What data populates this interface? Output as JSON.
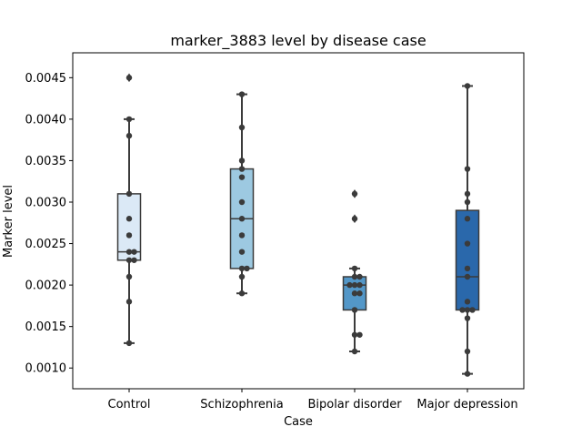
{
  "chart_data": {
    "type": "box",
    "title": "marker_3883 level by disease case",
    "xlabel": "Case",
    "ylabel": "Marker level",
    "categories": [
      "Control",
      "Schizophrenia",
      "Bipolar disorder",
      "Major depression"
    ],
    "ylim": [
      0.00075,
      0.0048
    ],
    "yticks": [
      "0.0010",
      "0.0015",
      "0.0020",
      "0.0025",
      "0.0030",
      "0.0035",
      "0.0040",
      "0.0045"
    ],
    "boxes": [
      {
        "q1": 0.0023,
        "median": 0.0024,
        "q3": 0.0031,
        "whisker_low": 0.0013,
        "whisker_high": 0.004,
        "fliers": [
          0.0045
        ],
        "color": "#dbe9f6"
      },
      {
        "q1": 0.0022,
        "median": 0.0028,
        "q3": 0.0034,
        "whisker_low": 0.0019,
        "whisker_high": 0.0043,
        "fliers": [],
        "color": "#9dc9e1"
      },
      {
        "q1": 0.0017,
        "median": 0.002,
        "q3": 0.0021,
        "whisker_low": 0.0012,
        "whisker_high": 0.0022,
        "fliers": [
          0.0031,
          0.0028
        ],
        "color": "#5397c8"
      },
      {
        "q1": 0.0017,
        "median": 0.0021,
        "q3": 0.0029,
        "whisker_low": 0.00093,
        "whisker_high": 0.0044,
        "fliers": [],
        "color": "#2a68ab"
      }
    ],
    "points": [
      [
        0.0045,
        0.004,
        0.0038,
        0.0031,
        0.0028,
        0.0026,
        0.0024,
        0.0024,
        0.0023,
        0.0023,
        0.0021,
        0.0018,
        0.0013
      ],
      [
        0.0043,
        0.0039,
        0.0035,
        0.0034,
        0.0033,
        0.003,
        0.0028,
        0.0026,
        0.0024,
        0.0022,
        0.0022,
        0.0021,
        0.0019
      ],
      [
        0.0031,
        0.0028,
        0.0022,
        0.0021,
        0.0021,
        0.002,
        0.002,
        0.002,
        0.0019,
        0.0019,
        0.0017,
        0.0014,
        0.0014,
        0.0012
      ],
      [
        0.0044,
        0.0034,
        0.0031,
        0.003,
        0.0028,
        0.0025,
        0.0022,
        0.0021,
        0.0018,
        0.0017,
        0.0017,
        0.0017,
        0.0016,
        0.0012,
        0.00093
      ]
    ],
    "grid": false,
    "legend": "none"
  }
}
